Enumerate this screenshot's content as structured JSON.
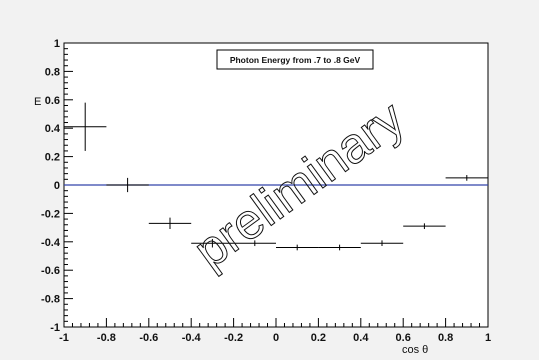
{
  "chart_data": {
    "type": "scatter",
    "title": "Photon Energy from .7 to .8 GeV",
    "xlabel": "cos θ",
    "ylabel": "E",
    "xlim": [
      -1,
      1
    ],
    "ylim": [
      -1,
      1
    ],
    "xticks": [
      "-1",
      "-0.8",
      "-0.6",
      "-0.4",
      "-0.2",
      "0",
      "0.2",
      "0.4",
      "0.6",
      "0.8",
      "1"
    ],
    "yticks": [
      "-1",
      "-0.8",
      "-0.6",
      "-0.4",
      "-0.2",
      "0",
      "0.2",
      "0.4",
      "0.6",
      "0.8",
      "1"
    ],
    "reference_line": {
      "y": 0,
      "color": "#3344aa"
    },
    "watermark": "preliminary",
    "grid": false,
    "series": [
      {
        "x": [
          -0.9,
          -0.7,
          -0.5,
          -0.3,
          -0.1,
          0.1,
          0.3,
          0.5,
          0.7,
          0.9
        ],
        "y": [
          0.41,
          0.0,
          -0.27,
          -0.41,
          -0.41,
          -0.44,
          -0.44,
          -0.41,
          -0.29,
          0.05
        ],
        "x_err": [
          0.1,
          0.1,
          0.1,
          0.1,
          0.1,
          0.1,
          0.1,
          0.1,
          0.1,
          0.1
        ],
        "y_err": [
          0.17,
          0.05,
          0.04,
          0.03,
          0.02,
          0.02,
          0.02,
          0.02,
          0.02,
          0.02
        ],
        "color": "#000000"
      }
    ]
  }
}
